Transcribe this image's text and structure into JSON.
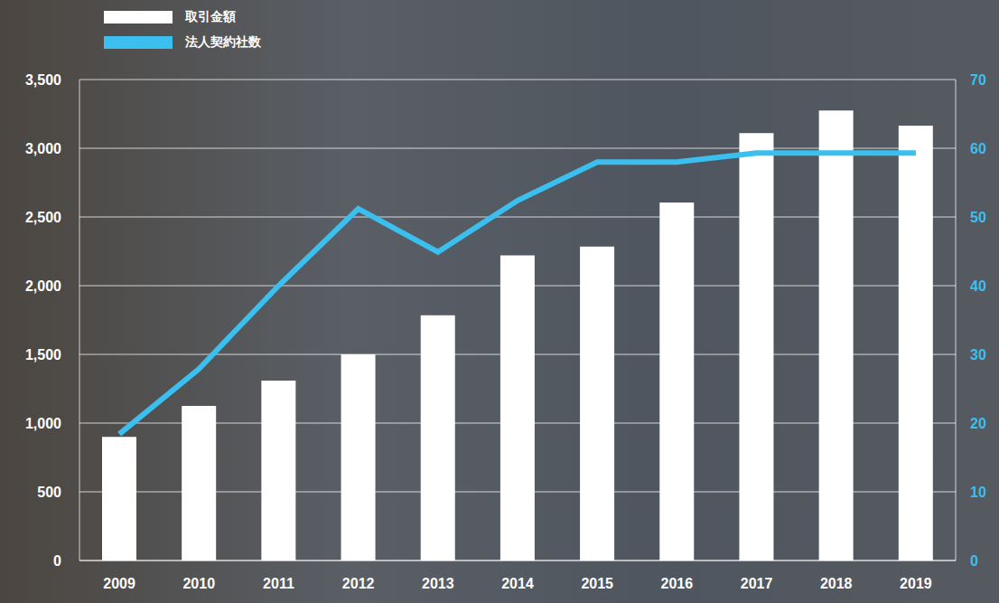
{
  "chart_data": {
    "type": "combo",
    "categories": [
      "2009",
      "2010",
      "2011",
      "2012",
      "2013",
      "2014",
      "2015",
      "2016",
      "2017",
      "2018",
      "2019"
    ],
    "series": [
      {
        "name": "取引金額",
        "type": "bar",
        "color": "#ffffff",
        "values": [
          900,
          1125,
          1310,
          1500,
          1785,
          2220,
          2285,
          2605,
          3110,
          3275,
          3165
        ]
      },
      {
        "name": "法人契約社数",
        "type": "line",
        "color": "#3bbfef",
        "axis": "y2",
        "values": [
          18.4,
          27.9,
          40,
          51.2,
          44.9,
          52.4,
          58,
          58,
          59.3,
          59.3,
          59.3
        ]
      }
    ],
    "ylim": [
      0,
      3500
    ],
    "yticks": [
      0,
      500,
      {
        "value": 1000,
        "label": "1,000"
      },
      {
        "value": 1500,
        "label": "1,500"
      },
      {
        "value": 2000,
        "label": "2,000"
      },
      {
        "value": 2500,
        "label": "2,500"
      },
      {
        "value": 3000,
        "label": "3,000"
      },
      {
        "value": 3500,
        "label": "3,500"
      }
    ],
    "y2lim": [
      0,
      70
    ],
    "y2ticks": [
      0,
      10,
      20,
      30,
      40,
      50,
      60,
      70
    ],
    "grid": true,
    "legend": "top-left"
  }
}
